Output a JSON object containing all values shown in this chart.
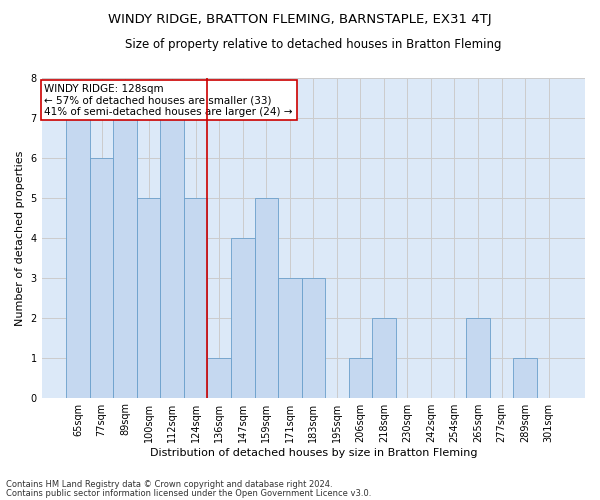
{
  "title": "WINDY RIDGE, BRATTON FLEMING, BARNSTAPLE, EX31 4TJ",
  "subtitle": "Size of property relative to detached houses in Bratton Fleming",
  "xlabel": "Distribution of detached houses by size in Bratton Fleming",
  "ylabel": "Number of detached properties",
  "footer_line1": "Contains HM Land Registry data © Crown copyright and database right 2024.",
  "footer_line2": "Contains public sector information licensed under the Open Government Licence v3.0.",
  "categories": [
    "65sqm",
    "77sqm",
    "89sqm",
    "100sqm",
    "112sqm",
    "124sqm",
    "136sqm",
    "147sqm",
    "159sqm",
    "171sqm",
    "183sqm",
    "195sqm",
    "206sqm",
    "218sqm",
    "230sqm",
    "242sqm",
    "254sqm",
    "265sqm",
    "277sqm",
    "289sqm",
    "301sqm"
  ],
  "values": [
    7,
    6,
    7,
    5,
    7,
    5,
    1,
    4,
    5,
    3,
    3,
    0,
    1,
    2,
    0,
    0,
    0,
    2,
    0,
    1,
    0
  ],
  "bar_color": "#c5d8f0",
  "bar_edge_color": "#6a9fcb",
  "vline_x": 5.5,
  "vline_color": "#cc0000",
  "annotation_title": "WINDY RIDGE: 128sqm",
  "annotation_line1": "← 57% of detached houses are smaller (33)",
  "annotation_line2": "41% of semi-detached houses are larger (24) →",
  "annotation_box_color": "#ffffff",
  "annotation_box_edge_color": "#cc0000",
  "ylim": [
    0,
    8
  ],
  "yticks": [
    0,
    1,
    2,
    3,
    4,
    5,
    6,
    7,
    8
  ],
  "grid_color": "#cccccc",
  "background_color": "#dce9f8",
  "fig_background_color": "#ffffff",
  "title_fontsize": 9.5,
  "subtitle_fontsize": 8.5,
  "ylabel_fontsize": 8,
  "xlabel_fontsize": 8,
  "tick_fontsize": 7,
  "footer_fontsize": 6,
  "annotation_fontsize": 7.5
}
